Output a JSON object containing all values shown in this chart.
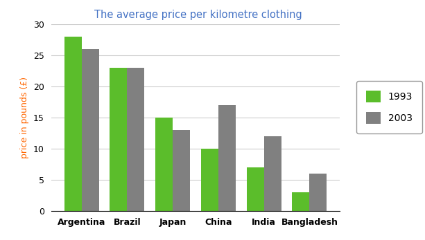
{
  "title": "The average price per kilometre clothing",
  "title_color": "#4472C4",
  "ylabel": "price in pounds (£)",
  "ylabel_color": "#FF6600",
  "categories": [
    "Argentina",
    "Brazil",
    "Japan",
    "China",
    "India",
    "Bangladesh"
  ],
  "values_1993": [
    28,
    23,
    15,
    10,
    7,
    3
  ],
  "values_2003": [
    26,
    23,
    13,
    17,
    12,
    6
  ],
  "color_1993": "#5BBD2B",
  "color_2003": "#808080",
  "ylim": [
    0,
    30
  ],
  "yticks": [
    0,
    5,
    10,
    15,
    20,
    25,
    30
  ],
  "legend_labels": [
    "1993",
    "2003"
  ],
  "bar_width": 0.38,
  "background_color": "#FFFFFF",
  "grid_color": "#CCCCCC"
}
